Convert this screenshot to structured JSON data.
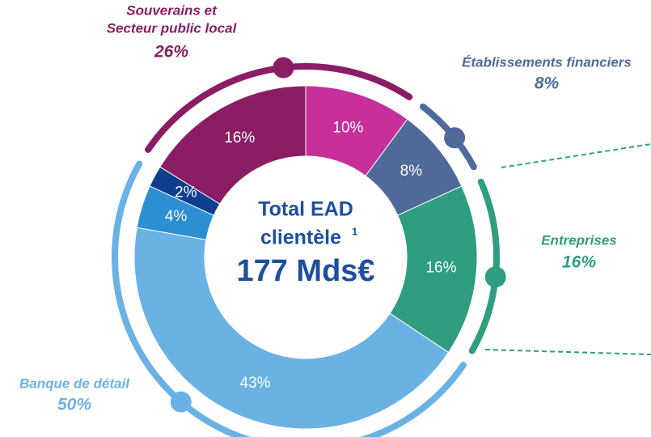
{
  "chart_data": {
    "type": "donut",
    "center_title": "Total EAD",
    "center_subtitle": "clientèle",
    "center_sup": "1",
    "center_value": "177 Mds€",
    "values": [
      10,
      8,
      16,
      43,
      4,
      2,
      16
    ],
    "value_labels": [
      "10%",
      "8%",
      "16%",
      "43%",
      "4%",
      "2%",
      "16%"
    ],
    "colors": [
      "#c7309a",
      "#4f6a99",
      "#2f9e80",
      "#6ab2e3",
      "#2b8fd2",
      "#0e3e8e",
      "#8a1d63"
    ],
    "groups": [
      {
        "name": [
          "Souverains et",
          "Secteur public local"
        ],
        "value": 26,
        "value_label": "26%",
        "color": "#8a1d63"
      },
      {
        "name": [
          "Établissements financiers"
        ],
        "value": 8,
        "value_label": "8%",
        "color": "#4f6a99"
      },
      {
        "name": [
          "Entreprises"
        ],
        "value": 16,
        "value_label": "16%",
        "color": "#2f9e80"
      },
      {
        "name": [
          "Banque de détail"
        ],
        "value": 50,
        "value_label": "50%",
        "color": "#6ab2e3"
      }
    ]
  }
}
